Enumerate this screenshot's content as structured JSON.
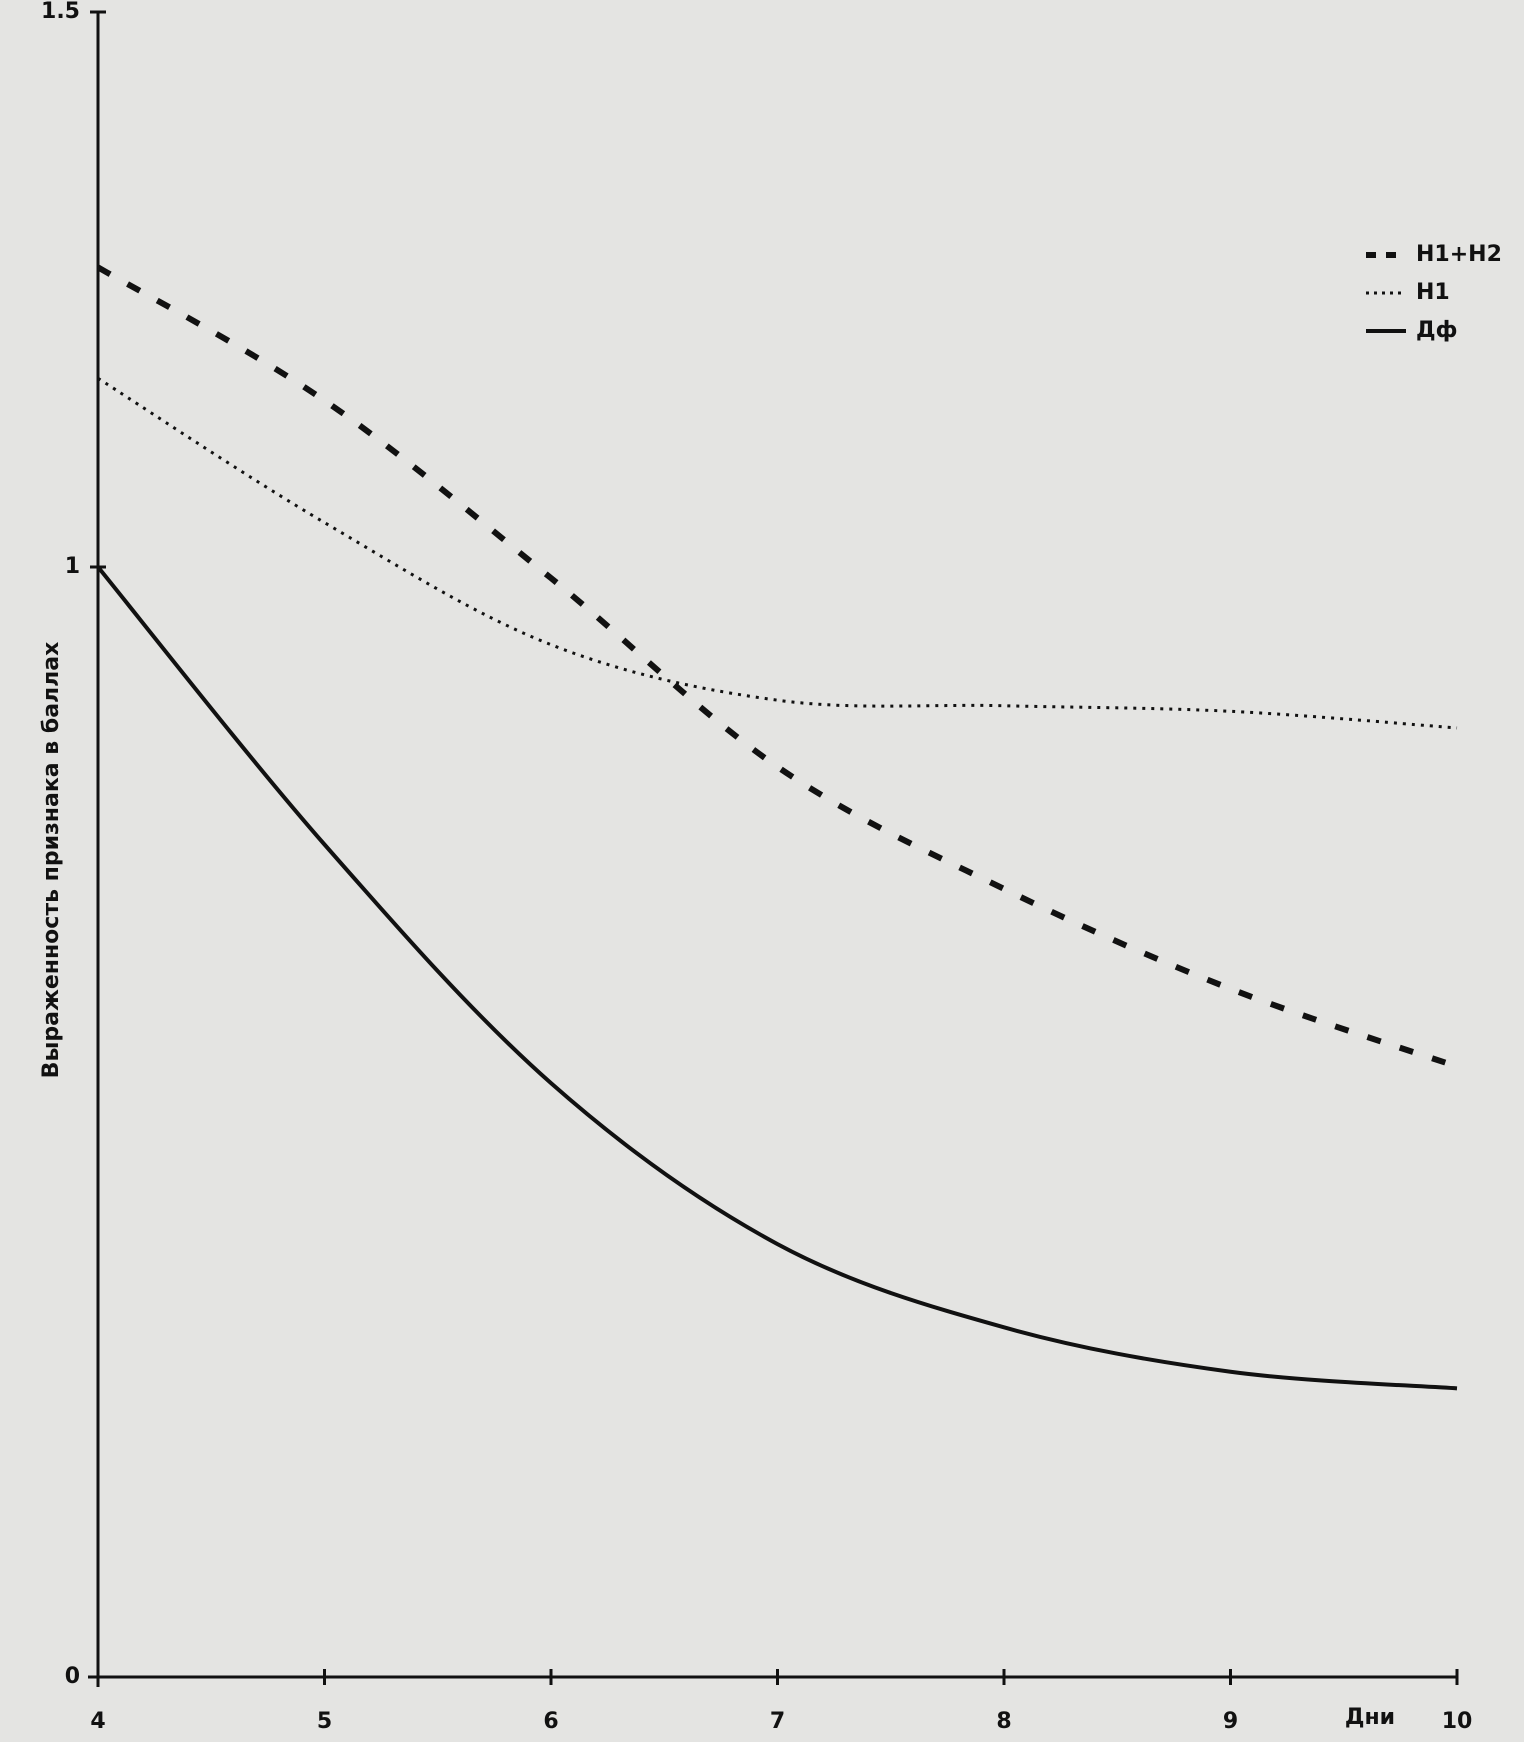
{
  "chart_data": {
    "type": "line",
    "x": [
      4,
      5,
      6,
      7,
      8,
      9,
      10
    ],
    "xlim": [
      4,
      10
    ],
    "xticks": [
      4,
      5,
      6,
      7,
      8,
      9,
      10
    ],
    "ylim": [
      0,
      1.5
    ],
    "yticks": [
      0,
      1,
      1.5
    ],
    "x_label": "Дни",
    "y_label": "Выраженность признака в баллах",
    "legend": "top-right",
    "series": [
      {
        "name": "H1+H2",
        "color": "#111111",
        "style": "dashed",
        "values": [
          1.27,
          1.15,
          0.99,
          0.82,
          0.71,
          0.62,
          0.55
        ]
      },
      {
        "name": "H1",
        "color": "#111111",
        "style": "dotted",
        "values": [
          1.17,
          1.04,
          0.93,
          0.88,
          0.875,
          0.87,
          0.855
        ]
      },
      {
        "name": "Дф",
        "color": "#111111",
        "style": "solid",
        "values": [
          1.0,
          0.75,
          0.535,
          0.39,
          0.315,
          0.275,
          0.26
        ]
      }
    ]
  }
}
